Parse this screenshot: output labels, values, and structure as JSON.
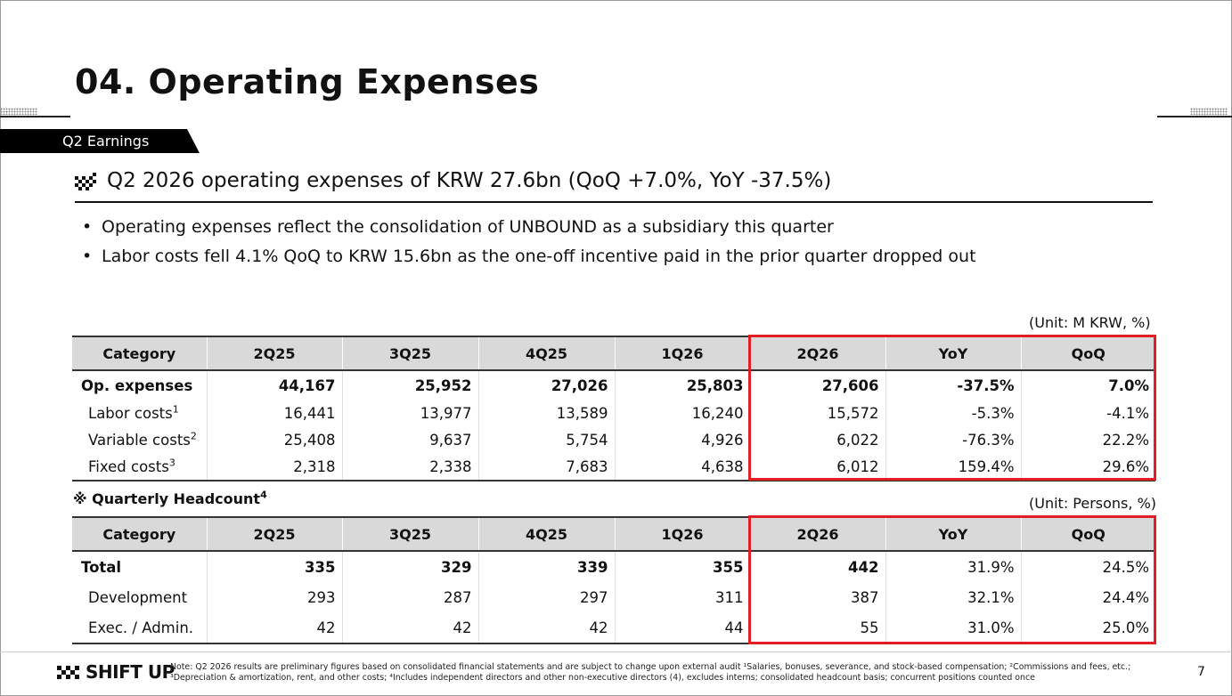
{
  "title": "04. Operating Expenses",
  "tag": "Q2 Earnings",
  "subheading": "Q2 2026 operating expenses of KRW 27.6bn (QoQ +7.0%, YoY -37.5%)",
  "bullets": [
    "Operating expenses reflect the consolidation of UNBOUND as a subsidiary this quarter",
    "Labor costs fell 4.1% QoQ to KRW 15.6bn as the one-off incentive paid in the prior quarter dropped out"
  ],
  "opex_table": {
    "unit": "(Unit: M KRW, %)",
    "headers": [
      "Category",
      "2Q25",
      "3Q25",
      "4Q25",
      "1Q26",
      "2Q26",
      "YoY",
      "QoQ"
    ],
    "rows": [
      {
        "label": "Op. expenses",
        "sup": "",
        "values": [
          "44,167",
          "25,952",
          "27,026",
          "25,803",
          "27,606",
          "-37.5%",
          "7.0%"
        ]
      },
      {
        "label": "Labor costs",
        "sup": "1",
        "values": [
          "16,441",
          "13,977",
          "13,589",
          "16,240",
          "15,572",
          "-5.3%",
          "-4.1%"
        ]
      },
      {
        "label": "Variable costs",
        "sup": "2",
        "values": [
          "25,408",
          "9,637",
          "5,754",
          "4,926",
          "6,022",
          "-76.3%",
          "22.2%"
        ]
      },
      {
        "label": "Fixed costs",
        "sup": "3",
        "values": [
          "2,318",
          "2,338",
          "7,683",
          "4,638",
          "6,012",
          "159.4%",
          "29.6%"
        ]
      }
    ]
  },
  "headcount_table": {
    "title": "※ Quarterly Headcount",
    "title_sup": "4",
    "unit": "(Unit: Persons, %)",
    "headers": [
      "Category",
      "2Q25",
      "3Q25",
      "4Q25",
      "1Q26",
      "2Q26",
      "YoY",
      "QoQ"
    ],
    "rows": [
      {
        "label": "Total",
        "values": [
          "335",
          "329",
          "339",
          "355",
          "442",
          "31.9%",
          "24.5%"
        ]
      },
      {
        "label": "Development",
        "values": [
          "293",
          "287",
          "297",
          "311",
          "387",
          "32.1%",
          "24.4%"
        ]
      },
      {
        "label": "Exec. / Admin.",
        "values": [
          "42",
          "42",
          "42",
          "44",
          "55",
          "31.0%",
          "25.0%"
        ]
      }
    ]
  },
  "footer": {
    "logo": "SHIFT UP",
    "note": "Note: Q2 2026 results are preliminary figures based on consolidated financial statements and are subject to change upon external audit ¹Salaries, bonuses, severance, and stock-based compensation; ²Commissions and fees, etc.; ³Depreciation & amortization, rent, and other costs; ⁴Includes independent directors and other non-executive directors (4), excludes interns; consolidated headcount basis; concurrent positions counted once",
    "page": "7"
  },
  "colors": {
    "highlight": "#e01e24",
    "header_bg": "#d9d9d9",
    "tag_bg": "#000000"
  }
}
